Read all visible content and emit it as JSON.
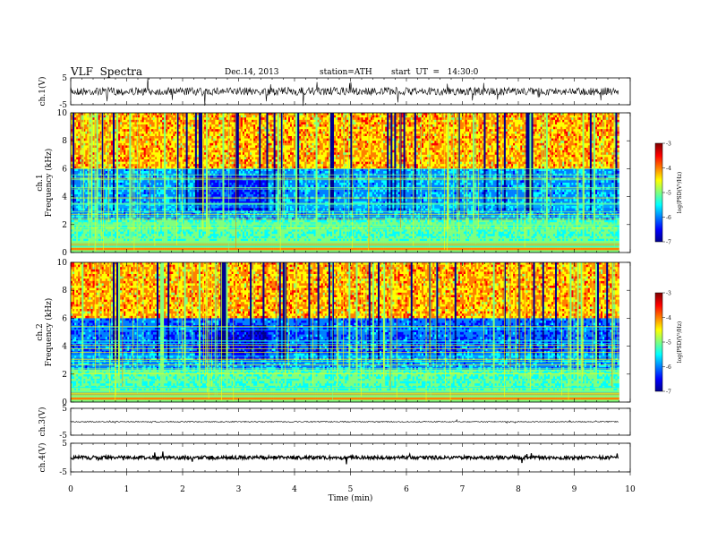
{
  "header": {
    "title": "VLF  Spectra",
    "date": "Dec.14, 2013",
    "station": "station=ATH",
    "start": "start  UT  =   14:30:0"
  },
  "chart_data": [
    {
      "type": "line",
      "name": "ch1-waveform",
      "ylabel": "ch.1(V)",
      "ylim": [
        -5,
        5
      ],
      "yticks": [
        "5",
        "-5"
      ],
      "xlim": [
        0,
        10
      ],
      "data_xrange": [
        0,
        9.8
      ]
    },
    {
      "type": "heatmap",
      "name": "ch1-spectrogram",
      "ylabel": "ch.1\nFrequency (kHz)",
      "ylim": [
        0,
        10
      ],
      "yticks": [
        "0",
        "2",
        "4",
        "6",
        "8",
        "10"
      ],
      "xlim": [
        0,
        10
      ],
      "data_xrange": [
        0,
        9.8
      ],
      "colorbar": {
        "label": "log(PSD(V²/Hz)",
        "range": [
          -7,
          -3
        ],
        "ticks": [
          "-3",
          "-4",
          "-5",
          "-6",
          "-7"
        ]
      }
    },
    {
      "type": "heatmap",
      "name": "ch2-spectrogram",
      "ylabel": "ch.2\nFrequency (kHz)",
      "ylim": [
        0,
        10
      ],
      "yticks": [
        "0",
        "2",
        "4",
        "6",
        "8",
        "10"
      ],
      "xlim": [
        0,
        10
      ],
      "data_xrange": [
        0,
        9.8
      ],
      "colorbar": {
        "label": "log(PSD(V²/Hz)",
        "range": [
          -7,
          -3
        ],
        "ticks": [
          "-3",
          "-4",
          "-5",
          "-6",
          "-7"
        ]
      }
    },
    {
      "type": "line",
      "name": "ch3-waveform",
      "ylabel": "ch.3(V)",
      "ylim": [
        -5,
        5
      ],
      "yticks": [
        "5",
        "-5"
      ],
      "xlim": [
        0,
        10
      ],
      "data_xrange": [
        0,
        9.8
      ]
    },
    {
      "type": "line",
      "name": "ch4-waveform",
      "ylabel": "ch.4(V)",
      "ylim": [
        -5,
        5
      ],
      "yticks": [
        "5",
        "-5"
      ],
      "xlim": [
        0,
        10
      ],
      "data_xrange": [
        0,
        9.8
      ]
    }
  ],
  "xaxis": {
    "label": "Time (min)",
    "ticks": [
      "0",
      "1",
      "2",
      "3",
      "4",
      "5",
      "6",
      "7",
      "8",
      "9",
      "10"
    ]
  },
  "colors": {
    "jet": [
      "#00008f",
      "#0000ff",
      "#007fff",
      "#00ffff",
      "#7fff7f",
      "#ffff00",
      "#ff7f00",
      "#ff0000",
      "#7f0000"
    ],
    "line": "#000000"
  }
}
